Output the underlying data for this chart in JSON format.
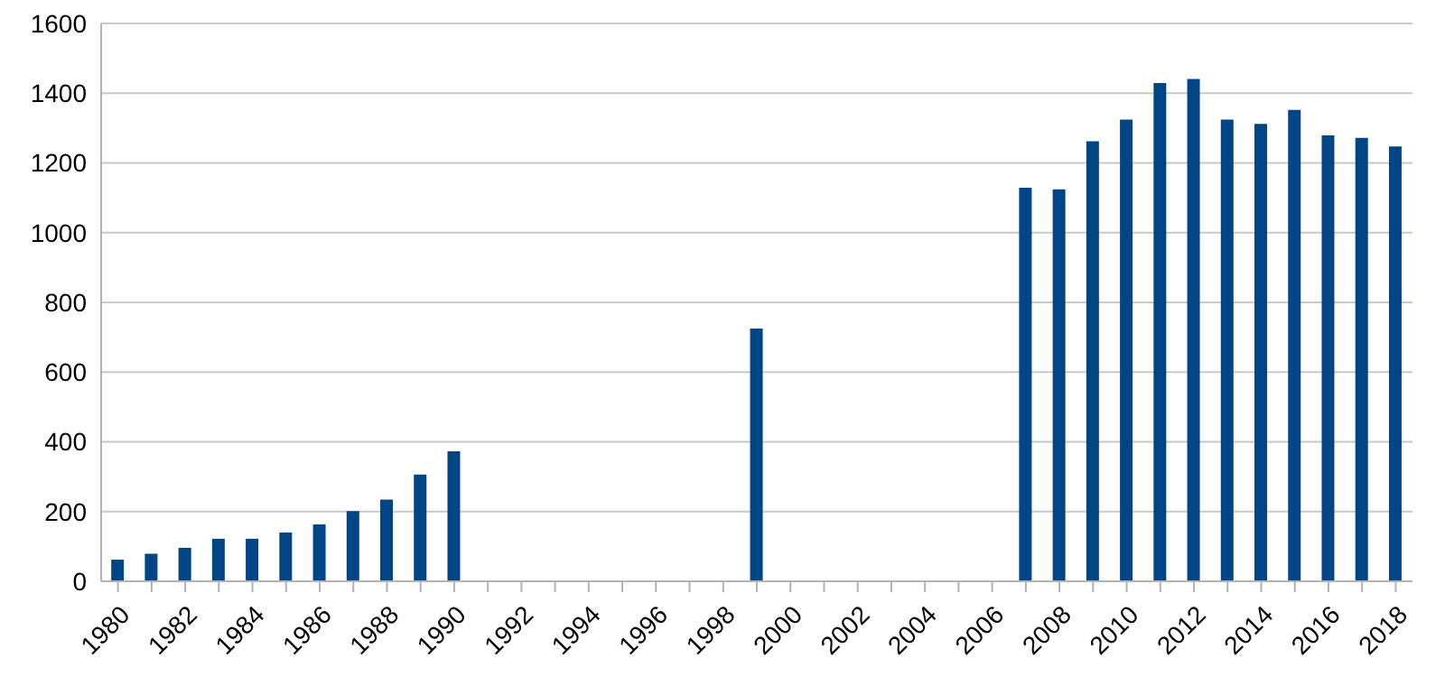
{
  "chart_data": {
    "type": "bar",
    "categories": [
      "1980",
      null,
      "1982",
      null,
      "1984",
      null,
      "1986",
      null,
      "1988",
      null,
      "1990",
      null,
      "1992",
      null,
      "1994",
      null,
      "1996",
      null,
      "1998",
      null,
      "2000",
      null,
      "2002",
      null,
      "2004",
      null,
      "2006",
      null,
      "2008",
      null,
      "2010",
      null,
      "2012",
      null,
      "2014",
      null,
      "2016",
      null,
      "2018"
    ],
    "values": [
      62,
      79,
      96,
      122,
      122,
      140,
      163,
      201,
      234,
      306,
      373,
      null,
      null,
      null,
      null,
      null,
      null,
      null,
      null,
      725,
      null,
      null,
      null,
      null,
      null,
      null,
      null,
      1129,
      1124,
      1262,
      1324,
      1429,
      1441,
      1324,
      1312,
      1352,
      1279,
      1272,
      1247
    ],
    "color": "#004586",
    "ylim": [
      0,
      1600
    ],
    "yticks": [
      0,
      200,
      400,
      600,
      800,
      1000,
      1200,
      1400,
      1600
    ],
    "grid": "y"
  }
}
